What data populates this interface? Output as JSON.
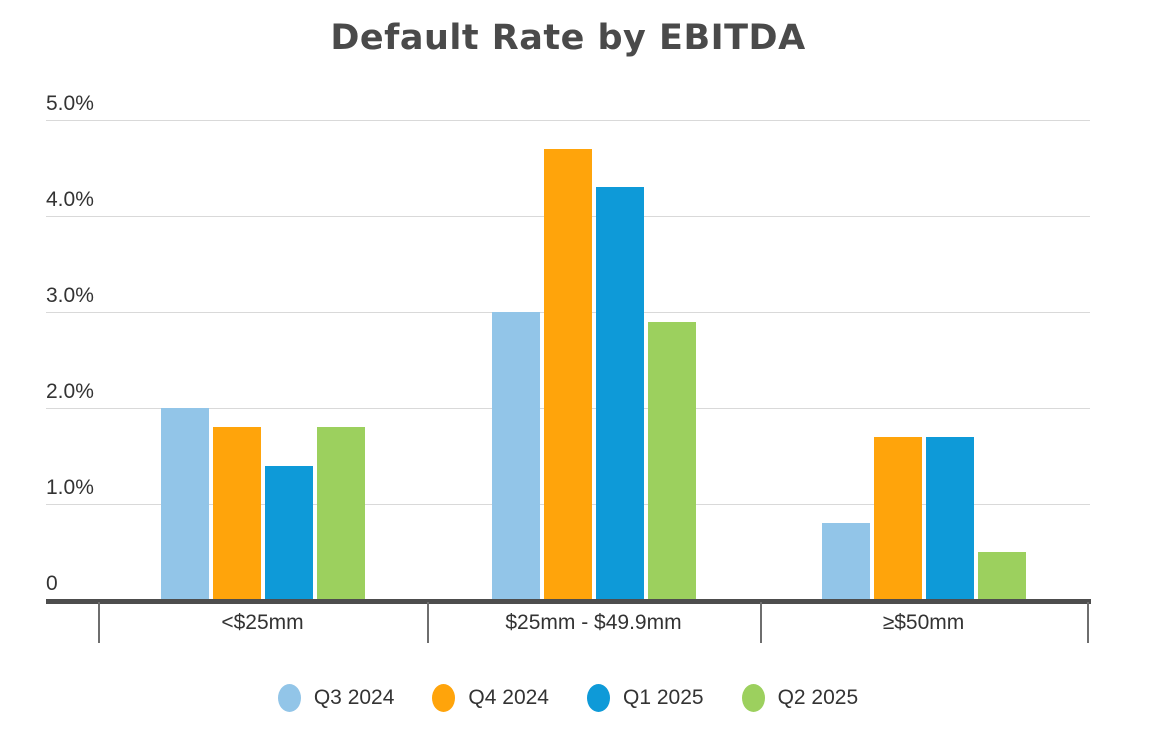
{
  "title": "Default Rate by EBITDA",
  "colors": {
    "background": "#ffffff",
    "title_text": "#4a4a4a",
    "label_text": "#333333",
    "gridline": "#d9d9d9",
    "axis_line": "#4d4d4d",
    "axis_tick": "#6e6e6e"
  },
  "chart_data": {
    "type": "bar",
    "title": "Default Rate by EBITDA",
    "categories": [
      "<$25mm",
      "$25mm - $49.9mm",
      "≥$50mm"
    ],
    "series": [
      {
        "name": "Q3 2024",
        "color": "#92c5e8",
        "values": [
          2.0,
          3.0,
          0.8
        ]
      },
      {
        "name": "Q4 2024",
        "color": "#ffa40b",
        "values": [
          1.8,
          4.7,
          1.7
        ]
      },
      {
        "name": "Q1 2025",
        "color": "#0e9ad8",
        "values": [
          1.4,
          4.3,
          1.7
        ]
      },
      {
        "name": "Q2 2025",
        "color": "#9cd05e",
        "values": [
          1.8,
          2.9,
          0.5
        ]
      }
    ],
    "value_unit": "%",
    "y_ticks": [
      {
        "value": 5.0,
        "label": "5.0%"
      },
      {
        "value": 4.0,
        "label": "4.0%"
      },
      {
        "value": 3.0,
        "label": "3.0%"
      },
      {
        "value": 2.0,
        "label": "2.0%"
      },
      {
        "value": 1.0,
        "label": "1.0%"
      },
      {
        "value": 0,
        "label": "0"
      }
    ],
    "ylim": [
      0,
      5.0
    ],
    "grid": true,
    "legend_position": "bottom"
  }
}
